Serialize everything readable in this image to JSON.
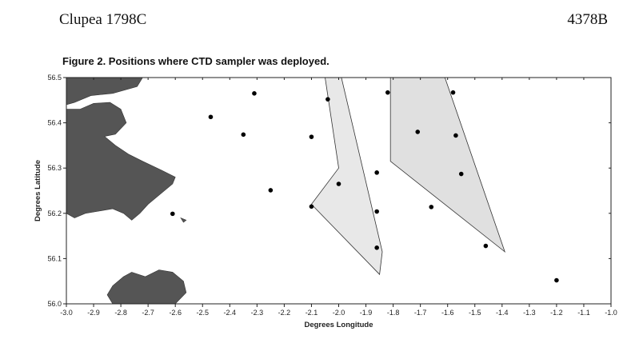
{
  "header": {
    "left": "Clupea 1798C",
    "right": "4378B"
  },
  "chart_data": {
    "type": "scatter",
    "title": "Figure 2. Positions where CTD sampler was deployed.",
    "xlabel": "Degrees Longitude",
    "ylabel": "Degrees Latitude",
    "xlim": [
      -3.0,
      -1.0
    ],
    "ylim": [
      56.0,
      56.5
    ],
    "xticks": [
      -3.0,
      -2.9,
      -2.8,
      -2.7,
      -2.6,
      -2.5,
      -2.4,
      -2.3,
      -2.2,
      -2.1,
      -2.0,
      -1.9,
      -1.8,
      -1.7,
      -1.6,
      -1.5,
      -1.4,
      -1.3,
      -1.2,
      -1.1,
      -1.0
    ],
    "xtick_labels": [
      "-3.0",
      "-2.9",
      "-2.8",
      "-2.7",
      "-2.6",
      "-2.5",
      "-2.4",
      "-2.3",
      "-2.2",
      "-2.1",
      "-2.0",
      "-1.9",
      "-1.8",
      "-1.7",
      "-1.6",
      "-1.5",
      "-1.4",
      "-1.3",
      "-1.2",
      "-1.1",
      "-1.0"
    ],
    "yticks": [
      56.0,
      56.1,
      56.2,
      56.3,
      56.4,
      56.5
    ],
    "ytick_labels": [
      "56.0",
      "56.1",
      "56.2",
      "56.3",
      "56.4",
      "56.5"
    ],
    "grid": false,
    "points": [
      {
        "x": -2.31,
        "y": 56.465
      },
      {
        "x": -2.47,
        "y": 56.413
      },
      {
        "x": -2.35,
        "y": 56.374
      },
      {
        "x": -2.1,
        "y": 56.369
      },
      {
        "x": -2.04,
        "y": 56.452
      },
      {
        "x": -1.82,
        "y": 56.467
      },
      {
        "x": -1.58,
        "y": 56.467
      },
      {
        "x": -1.71,
        "y": 56.38
      },
      {
        "x": -1.57,
        "y": 56.372
      },
      {
        "x": -1.86,
        "y": 56.29
      },
      {
        "x": -1.55,
        "y": 56.287
      },
      {
        "x": -2.0,
        "y": 56.265
      },
      {
        "x": -2.25,
        "y": 56.251
      },
      {
        "x": -2.1,
        "y": 56.215
      },
      {
        "x": -1.66,
        "y": 56.214
      },
      {
        "x": -1.86,
        "y": 56.204
      },
      {
        "x": -2.61,
        "y": 56.199
      },
      {
        "x": -1.86,
        "y": 56.124
      },
      {
        "x": -1.46,
        "y": 56.128
      },
      {
        "x": -1.2,
        "y": 56.052
      }
    ],
    "areas": [
      {
        "fill": "#e8e8e8",
        "vertices": [
          [
            -2.05,
            56.5
          ],
          [
            -1.99,
            56.5
          ],
          [
            -1.84,
            56.115
          ],
          [
            -1.85,
            56.065
          ],
          [
            -2.1,
            56.22
          ],
          [
            -2.0,
            56.3
          ]
        ]
      },
      {
        "fill": "#e0e0e0",
        "vertices": [
          [
            -1.81,
            56.5
          ],
          [
            -1.61,
            56.5
          ],
          [
            -1.39,
            56.115
          ],
          [
            -1.81,
            56.315
          ]
        ]
      }
    ],
    "land": [
      {
        "fill": "#555555",
        "vertices": [
          [
            -3.0,
            56.5
          ],
          [
            -2.72,
            56.5
          ],
          [
            -2.74,
            56.48
          ],
          [
            -2.83,
            56.465
          ],
          [
            -2.91,
            56.46
          ],
          [
            -2.97,
            56.445
          ],
          [
            -3.0,
            56.44
          ]
        ]
      },
      {
        "fill": "#555555",
        "vertices": [
          [
            -3.0,
            56.43
          ],
          [
            -2.95,
            56.43
          ],
          [
            -2.9,
            56.443
          ],
          [
            -2.84,
            56.445
          ],
          [
            -2.8,
            56.43
          ],
          [
            -2.78,
            56.4
          ],
          [
            -2.82,
            56.375
          ],
          [
            -2.86,
            56.37
          ],
          [
            -2.82,
            56.35
          ],
          [
            -2.77,
            56.33
          ],
          [
            -2.72,
            56.315
          ],
          [
            -2.65,
            56.295
          ],
          [
            -2.6,
            56.28
          ],
          [
            -2.61,
            56.265
          ],
          [
            -2.65,
            56.245
          ],
          [
            -2.7,
            56.22
          ],
          [
            -2.73,
            56.2
          ],
          [
            -2.76,
            56.185
          ],
          [
            -2.79,
            56.2
          ],
          [
            -2.83,
            56.21
          ],
          [
            -2.88,
            56.205
          ],
          [
            -2.93,
            56.2
          ],
          [
            -2.97,
            56.19
          ],
          [
            -3.0,
            56.2
          ]
        ]
      },
      {
        "fill": "#555555",
        "vertices": [
          [
            -2.83,
            56.0
          ],
          [
            -2.6,
            56.0
          ],
          [
            -2.56,
            56.025
          ],
          [
            -2.57,
            56.05
          ],
          [
            -2.61,
            56.07
          ],
          [
            -2.66,
            56.075
          ],
          [
            -2.71,
            56.06
          ],
          [
            -2.76,
            56.07
          ],
          [
            -2.79,
            56.06
          ],
          [
            -2.83,
            56.04
          ],
          [
            -2.85,
            56.02
          ]
        ]
      },
      {
        "fill": "#555555",
        "vertices": [
          [
            -2.58,
            56.19
          ],
          [
            -2.56,
            56.185
          ],
          [
            -2.57,
            56.18
          ]
        ]
      }
    ]
  }
}
